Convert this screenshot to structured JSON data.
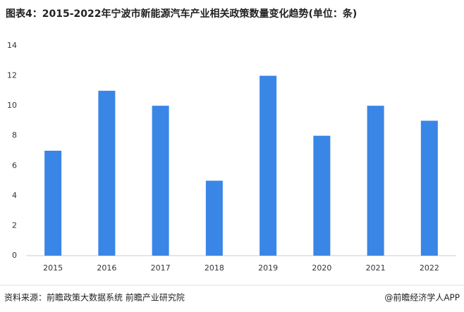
{
  "chart_data": {
    "type": "bar",
    "title": "图表4：2015-2022年宁波市新能源汽车产业相关政策数量变化趋势(单位：条)",
    "categories": [
      "2015",
      "2016",
      "2017",
      "2018",
      "2019",
      "2020",
      "2021",
      "2022"
    ],
    "values": [
      7,
      11,
      10,
      5,
      12,
      8,
      10,
      9
    ],
    "color": "#3a86e6",
    "ylim": [
      0,
      14
    ],
    "yticks": [
      0,
      2,
      4,
      6,
      8,
      10,
      12,
      14
    ],
    "grid": false
  },
  "footer": {
    "source": "资料来源：前瞻政策大数据系统 前瞻产业研究院",
    "brand": "@前瞻经济学人APP"
  }
}
